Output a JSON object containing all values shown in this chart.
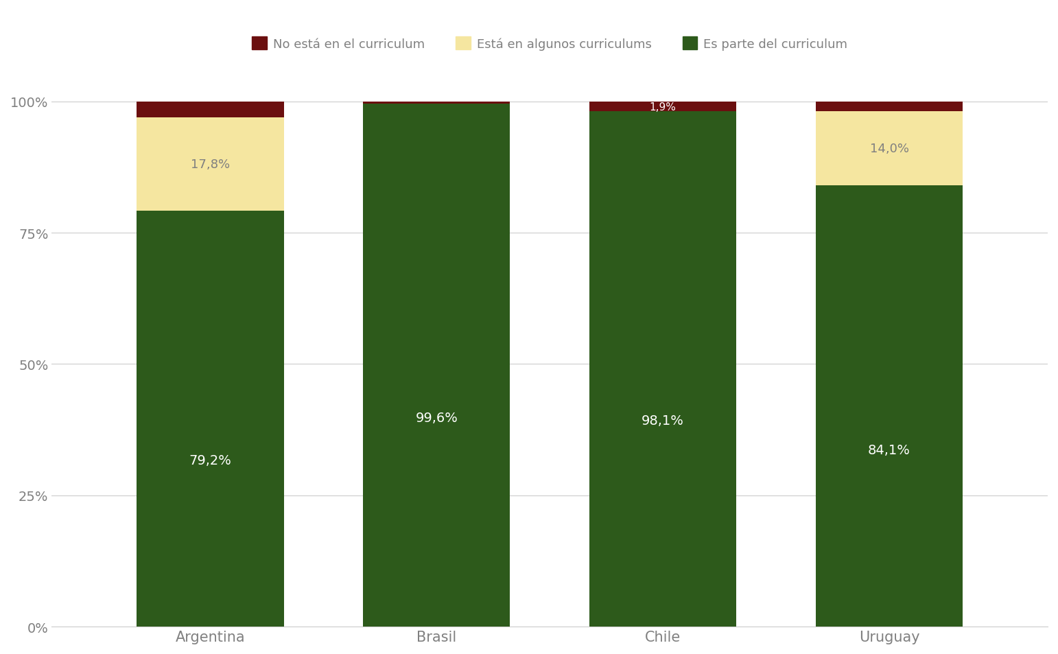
{
  "countries": [
    "Argentina",
    "Brasil",
    "Chile",
    "Uruguay"
  ],
  "green_values": [
    79.2,
    99.6,
    98.1,
    84.1
  ],
  "yellow_values": [
    17.8,
    0.0,
    0.0,
    14.0
  ],
  "red_values": [
    3.0,
    0.4,
    1.9,
    1.9
  ],
  "green_color": "#2d5a1b",
  "yellow_color": "#f5e6a0",
  "red_color": "#6b0f0f",
  "background_color": "#ffffff",
  "gridline_color": "#cccccc",
  "text_color": "#808080",
  "legend_labels": [
    "No está en el curriculum",
    "Está en algunos curriculums",
    "Es parte del curriculum"
  ],
  "bar_width": 0.65,
  "yticks": [
    0,
    25,
    50,
    75,
    100
  ],
  "ytick_labels": [
    "0%",
    "25%",
    "50%",
    "75%",
    "100%"
  ],
  "value_label_color_green": "#ffffff",
  "value_label_color_yellow": "#808080",
  "value_label_color_red": "#ffffff",
  "show_red_label": {
    "Argentina": false,
    "Brasil": false,
    "Chile": true,
    "Uruguay": false
  }
}
